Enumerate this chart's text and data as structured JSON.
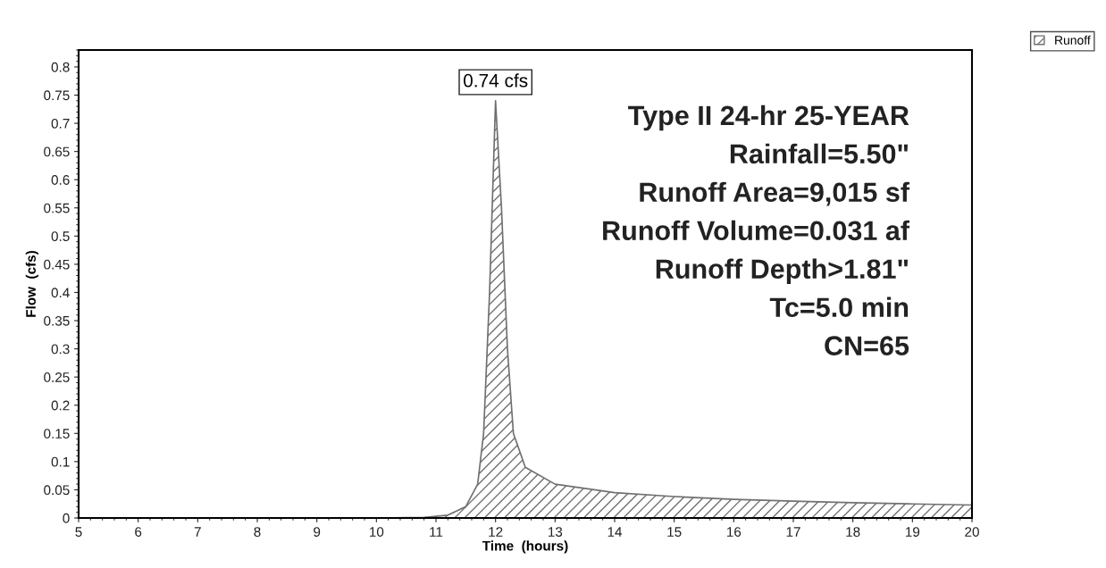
{
  "chart_data": {
    "type": "area",
    "xlabel": "Time  (hours)",
    "ylabel": "Flow  (cfs)",
    "x": [
      5,
      10,
      10.8,
      11.2,
      11.5,
      11.7,
      11.8,
      11.9,
      12.0,
      12.1,
      12.2,
      12.3,
      12.5,
      13,
      14,
      15,
      16,
      17,
      18,
      19,
      20
    ],
    "series": [
      {
        "name": "Runoff",
        "color": "#707070",
        "values": [
          0,
          0,
          0.001,
          0.005,
          0.02,
          0.06,
          0.15,
          0.4,
          0.74,
          0.55,
          0.3,
          0.15,
          0.09,
          0.06,
          0.045,
          0.038,
          0.033,
          0.03,
          0.027,
          0.025,
          0.023
        ]
      }
    ],
    "xlim": [
      5,
      20
    ],
    "xticks": [
      5,
      6,
      7,
      8,
      9,
      10,
      11,
      12,
      13,
      14,
      15,
      16,
      17,
      18,
      19,
      20
    ],
    "ylim": [
      0,
      0.83
    ],
    "yticks": [
      0,
      0.05,
      0.1,
      0.15,
      0.2,
      0.25,
      0.3,
      0.35,
      0.4,
      0.45,
      0.5,
      0.55,
      0.6,
      0.65,
      0.7,
      0.75,
      0.8
    ],
    "annotations": [
      {
        "text": "0.74 cfs",
        "x": 12.0,
        "y": 0.74
      },
      "Type II 24-hr 25-YEAR",
      "Rainfall=5.50\"",
      "Runoff Area=9,015 sf",
      "Runoff Volume=0.031 af",
      "Runoff Depth>1.81\"",
      "Tc=5.0 min",
      "CN=65"
    ],
    "grid": false,
    "legend": "top right"
  }
}
